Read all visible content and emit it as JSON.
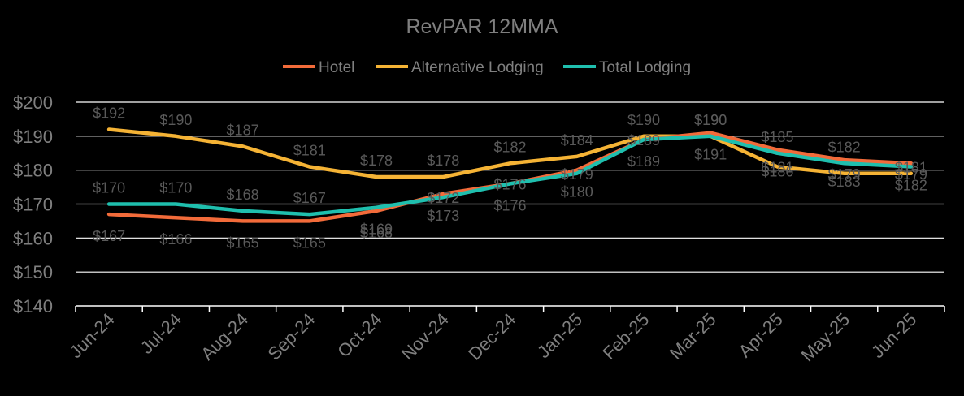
{
  "chart_data": {
    "type": "line",
    "title": "RevPAR 12MMA",
    "xlabel": "",
    "ylabel": "",
    "ylim": [
      140,
      200
    ],
    "yticks": [
      140,
      150,
      160,
      170,
      180,
      190,
      200
    ],
    "ytick_labels": [
      "$140",
      "$150",
      "$160",
      "$170",
      "$180",
      "$190",
      "$200"
    ],
    "grid": true,
    "legend_position": "top",
    "categories": [
      "Jun-24",
      "Jul-24",
      "Aug-24",
      "Sep-24",
      "Oct-24",
      "Nov-24",
      "Dec-24",
      "Jan-25",
      "Feb-25",
      "Mar-25",
      "Apr-25",
      "May-25",
      "Jun-25"
    ],
    "series": [
      {
        "name": "Hotel",
        "color": "#F26B3A",
        "values": [
          167,
          166,
          165,
          165,
          168,
          173,
          176,
          180,
          189,
          191,
          186,
          183,
          182
        ],
        "labels": [
          "$167",
          "$166",
          "$165",
          "$165",
          "$168",
          "$173",
          "$176",
          "$180",
          "$189",
          "$191",
          "$186",
          "$183",
          "$182"
        ],
        "label_pos": [
          "below",
          "below",
          "below",
          "below",
          "below",
          "below",
          "below",
          "below",
          "below",
          "below",
          "below",
          "below",
          "below"
        ]
      },
      {
        "name": "Alternative Lodging",
        "color": "#F5B335",
        "values": [
          192,
          190,
          187,
          181,
          178,
          178,
          182,
          184,
          190,
          190,
          181,
          179,
          179
        ],
        "labels": [
          "$192",
          "$190",
          "$187",
          "$181",
          "$178",
          "$178",
          "$182",
          "$184",
          "$190",
          "$190",
          "$181",
          "$179",
          "$179"
        ],
        "label_pos": [
          "above",
          "above",
          "above",
          "above",
          "above",
          "above",
          "above",
          "above",
          "above",
          "above",
          "on",
          "on",
          "on"
        ]
      },
      {
        "name": "Total Lodging",
        "color": "#1FBFAE",
        "values": [
          170,
          170,
          168,
          167,
          169,
          172,
          176,
          179,
          189,
          190,
          185,
          182,
          181
        ],
        "labels": [
          "$170",
          "$170",
          "$168",
          "$167",
          "$169",
          "$172",
          "$176",
          "$179",
          "$189",
          "$190",
          "$185",
          "$182",
          "$181"
        ],
        "label_pos": [
          "above",
          "above",
          "above",
          "above",
          "below",
          "on",
          "on",
          "on",
          "on",
          "above",
          "above",
          "above",
          "on"
        ]
      }
    ]
  }
}
